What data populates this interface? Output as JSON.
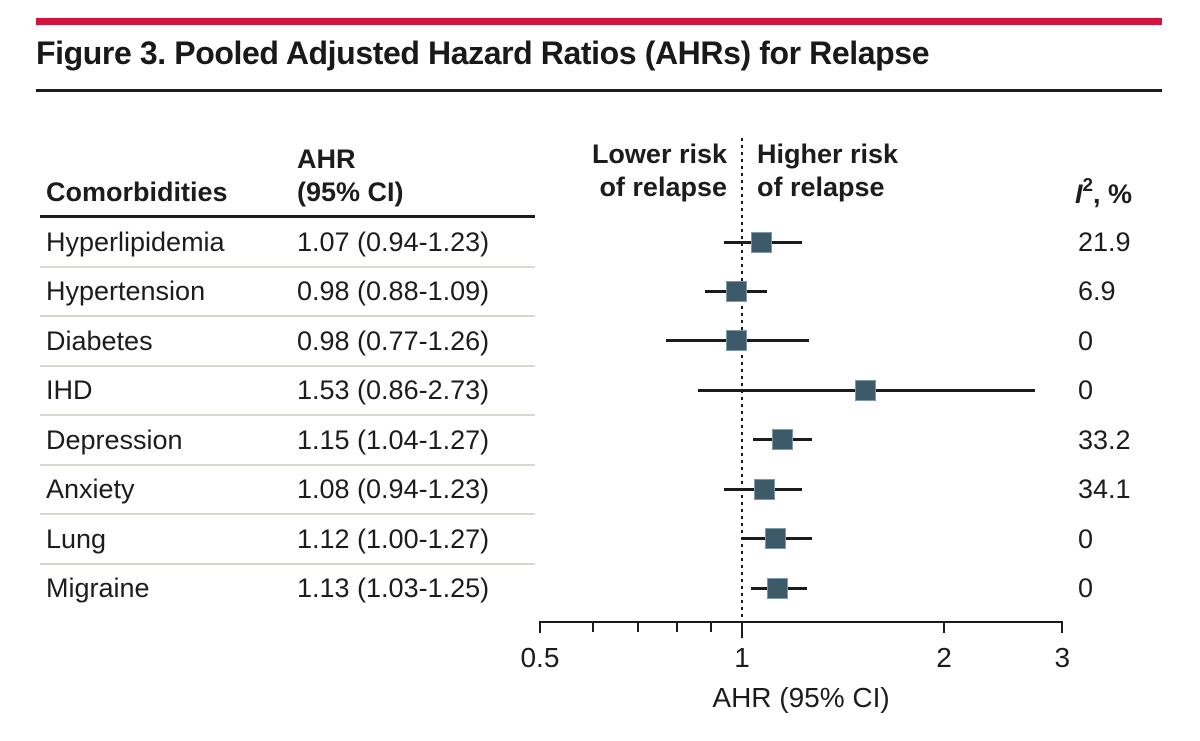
{
  "figure": {
    "title": "Figure 3. Pooled Adjusted Hazard Ratios (AHRs) for Relapse",
    "accent_color": "#d5123e",
    "marker_color": "#3c5a69"
  },
  "table": {
    "comorbidities_header": "Comorbidities",
    "ahr_header_line1": "AHR",
    "ahr_header_line2": "(95% CI)",
    "i2_header_base": "I",
    "i2_header_sup": "2",
    "i2_header_rest": ", %"
  },
  "plot_header": {
    "left_line1": "Lower risk",
    "left_line2": "of relapse",
    "right_line1": "Higher risk",
    "right_line2": "of relapse"
  },
  "chart_data": {
    "type": "forest",
    "title": "Figure 3. Pooled Adjusted Hazard Ratios (AHRs) for Relapse",
    "xlabel": "AHR (95% CI)",
    "x_scale": "log",
    "x_range": [
      0.5,
      3
    ],
    "reference_line": 1,
    "ticks": [
      0.5,
      0.6,
      0.7,
      0.8,
      0.9,
      1,
      2,
      3
    ],
    "labeled_ticks": [
      0.5,
      1,
      2,
      3
    ],
    "annotations": {
      "left_of_reference": "Lower risk of relapse",
      "right_of_reference": "Higher risk of relapse"
    },
    "rows": [
      {
        "label": "Hyperlipidemia",
        "ahr": 1.07,
        "ci_low": 0.94,
        "ci_high": 1.23,
        "ahr_text": "1.07 (0.94-1.23)",
        "i2_pct": "21.9"
      },
      {
        "label": "Hypertension",
        "ahr": 0.98,
        "ci_low": 0.88,
        "ci_high": 1.09,
        "ahr_text": "0.98 (0.88-1.09)",
        "i2_pct": "6.9"
      },
      {
        "label": "Diabetes",
        "ahr": 0.98,
        "ci_low": 0.77,
        "ci_high": 1.26,
        "ahr_text": "0.98 (0.77-1.26)",
        "i2_pct": "0"
      },
      {
        "label": "IHD",
        "ahr": 1.53,
        "ci_low": 0.86,
        "ci_high": 2.73,
        "ahr_text": "1.53 (0.86-2.73)",
        "i2_pct": "0"
      },
      {
        "label": "Depression",
        "ahr": 1.15,
        "ci_low": 1.04,
        "ci_high": 1.27,
        "ahr_text": "1.15 (1.04-1.27)",
        "i2_pct": "33.2"
      },
      {
        "label": "Anxiety",
        "ahr": 1.08,
        "ci_low": 0.94,
        "ci_high": 1.23,
        "ahr_text": "1.08 (0.94-1.23)",
        "i2_pct": "34.1"
      },
      {
        "label": "Lung",
        "ahr": 1.12,
        "ci_low": 1.0,
        "ci_high": 1.27,
        "ahr_text": "1.12 (1.00-1.27)",
        "i2_pct": "0"
      },
      {
        "label": "Migraine",
        "ahr": 1.13,
        "ci_low": 1.03,
        "ci_high": 1.25,
        "ahr_text": "1.13 (1.03-1.25)",
        "i2_pct": "0"
      }
    ]
  }
}
